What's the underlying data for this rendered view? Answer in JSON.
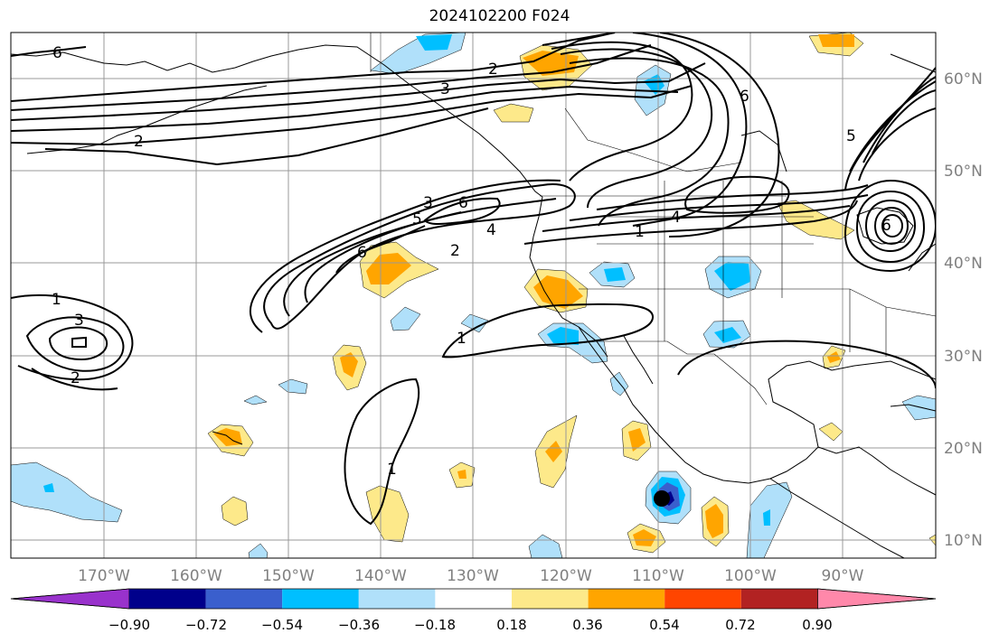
{
  "title": "2024102200 F024",
  "lon_labels": [
    "170°W",
    "160°W",
    "150°W",
    "140°W",
    "130°W",
    "120°W",
    "110°W",
    "100°W",
    "90°W"
  ],
  "lat_labels": [
    "60°N",
    "50°N",
    "40°N",
    "30°N",
    "20°N",
    "10°N"
  ],
  "colorbar": {
    "tick_labels": [
      "−0.90",
      "−0.72",
      "−0.54",
      "−0.36",
      "−0.18",
      "0.18",
      "0.36",
      "0.54",
      "0.72",
      "0.90"
    ],
    "colors": [
      "#9932cc",
      "#00008b",
      "#3a5fcd",
      "#00bfff",
      "#b0e0fa",
      "#ffffff",
      "#fde98a",
      "#ffa500",
      "#ff4500",
      "#b22222",
      "#ff88aa"
    ]
  },
  "contour_labels": [
    {
      "text": "6"
    },
    {
      "text": "2"
    },
    {
      "text": "2"
    },
    {
      "text": "3"
    },
    {
      "text": "6"
    },
    {
      "text": "3"
    },
    {
      "text": "6"
    },
    {
      "text": "5"
    },
    {
      "text": "4"
    },
    {
      "text": "2"
    },
    {
      "text": "6"
    },
    {
      "text": "1"
    },
    {
      "text": "4"
    },
    {
      "text": "1"
    },
    {
      "text": "3"
    },
    {
      "text": "2"
    },
    {
      "text": "1"
    },
    {
      "text": "1"
    },
    {
      "text": "6"
    },
    {
      "text": "5"
    }
  ],
  "chart_data": {
    "type": "contour map",
    "region": {
      "lon_range": [
        -180,
        -80
      ],
      "lat_range": [
        8,
        65
      ]
    },
    "projection": "PlateCarree",
    "grid": true,
    "contour_values": [
      1,
      2,
      3,
      4,
      5,
      6
    ],
    "shaded_levels": [
      -0.9,
      -0.72,
      -0.54,
      -0.36,
      -0.18,
      0.18,
      0.36,
      0.54,
      0.72,
      0.9
    ],
    "colorbar_extend": "both",
    "marker": {
      "lon": -109.5,
      "lat": 14.5
    }
  }
}
